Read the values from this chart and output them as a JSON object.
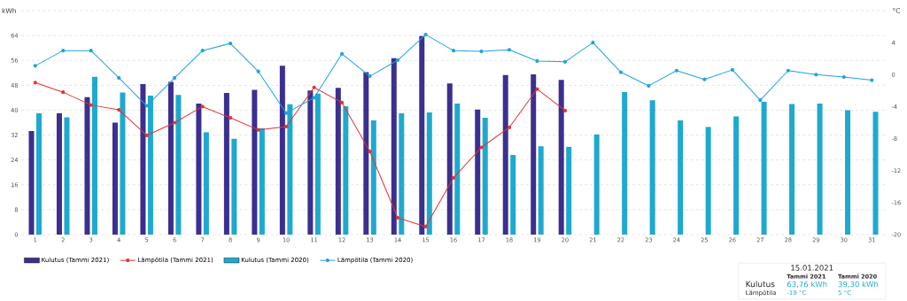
{
  "chart_data": {
    "type": "bar",
    "categories": [
      "1",
      "2",
      "3",
      "4",
      "5",
      "6",
      "7",
      "8",
      "9",
      "10",
      "11",
      "12",
      "13",
      "14",
      "15",
      "16",
      "17",
      "18",
      "19",
      "20",
      "21",
      "22",
      "23",
      "24",
      "25",
      "26",
      "27",
      "28",
      "29",
      "30",
      "31"
    ],
    "series": [
      {
        "name": "Kulutus (Tammi 2021)",
        "color": "#3b2f8f",
        "values": [
          33.3,
          39.0,
          44.2,
          36.0,
          48.4,
          49.1,
          42.1,
          45.5,
          46.5,
          54.3,
          46.3,
          47.2,
          52.2,
          56.7,
          63.8,
          48.6,
          40.2,
          51.3,
          51.5,
          49.7,
          null,
          null,
          null,
          null,
          null,
          null,
          null,
          null,
          null,
          null,
          null
        ]
      },
      {
        "name": "Lämpötila (Tammi 2021)",
        "type": "line",
        "axis": "y2",
        "color": "#e8322f",
        "values": [
          -1.0,
          -2.2,
          -3.8,
          -4.4,
          -7.6,
          -6.0,
          -4.0,
          -5.4,
          -6.9,
          -6.5,
          -1.6,
          -3.5,
          -9.6,
          -17.9,
          -19,
          -12.9,
          -9.1,
          -6.6,
          -1.8,
          -4.5,
          null,
          null,
          null,
          null,
          null,
          null,
          null,
          null,
          null,
          null,
          null
        ]
      },
      {
        "name": "Kulutus (Tammi 2020)",
        "color": "#1ea9cf",
        "values": [
          39.0,
          37.7,
          50.7,
          45.7,
          44.7,
          44.9,
          32.9,
          30.8,
          34.2,
          41.9,
          45.3,
          41.3,
          36.7,
          39.0,
          39.3,
          42.1,
          37.6,
          25.6,
          28.4,
          28.2,
          32.2,
          45.8,
          43.2,
          36.7,
          34.6,
          38.0,
          42.7,
          42.0,
          42.1,
          40.0,
          39.5
        ]
      },
      {
        "name": "Lämpötila (Tammi 2020)",
        "type": "line",
        "axis": "y2",
        "color": "#1ea4df",
        "values": [
          1.1,
          3.0,
          3.0,
          -0.4,
          -3.9,
          -0.4,
          3.0,
          3.9,
          0.4,
          -4.8,
          -2.9,
          2.6,
          -0.2,
          1.8,
          5,
          3.0,
          2.9,
          3.1,
          1.7,
          1.6,
          4.0,
          0.3,
          -1.4,
          0.5,
          -0.6,
          0.6,
          -3.2,
          0.5,
          0.0,
          -0.3,
          -0.7
        ]
      }
    ],
    "ylabel": "kWh",
    "y2label": "°C",
    "ylim": [
      0,
      72
    ],
    "yticks": [
      0,
      8,
      16,
      24,
      32,
      40,
      48,
      56,
      64,
      {
        "value": 72,
        "label": null
      }
    ],
    "y2lim": [
      -20,
      8
    ],
    "y2ticks": [
      -20,
      -16,
      -12,
      -8,
      -4,
      0,
      4
    ],
    "grid": "y",
    "legend": "bottom left",
    "marker": "circle",
    "annotations": [
      "15.01.2021",
      "Tammi 2021",
      "Tammi 2020",
      "Kulutus",
      "63,76 kWh",
      "39,30 kWh",
      "Lämpötila",
      "-19 °C",
      "5 °C"
    ]
  }
}
